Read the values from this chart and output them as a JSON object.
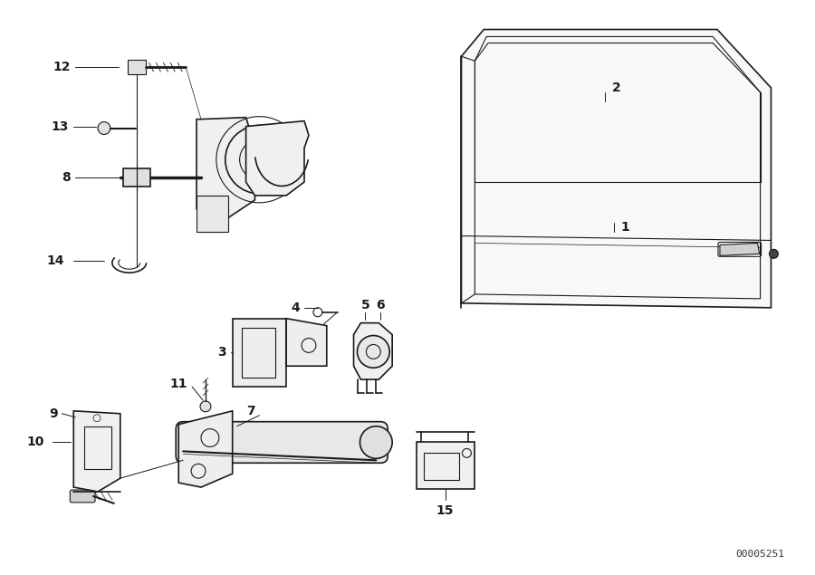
{
  "bg_color": "#ffffff",
  "line_color": "#1a1a1a",
  "diagram_id": "00005251",
  "label_fontsize": 10,
  "id_fontsize": 8
}
